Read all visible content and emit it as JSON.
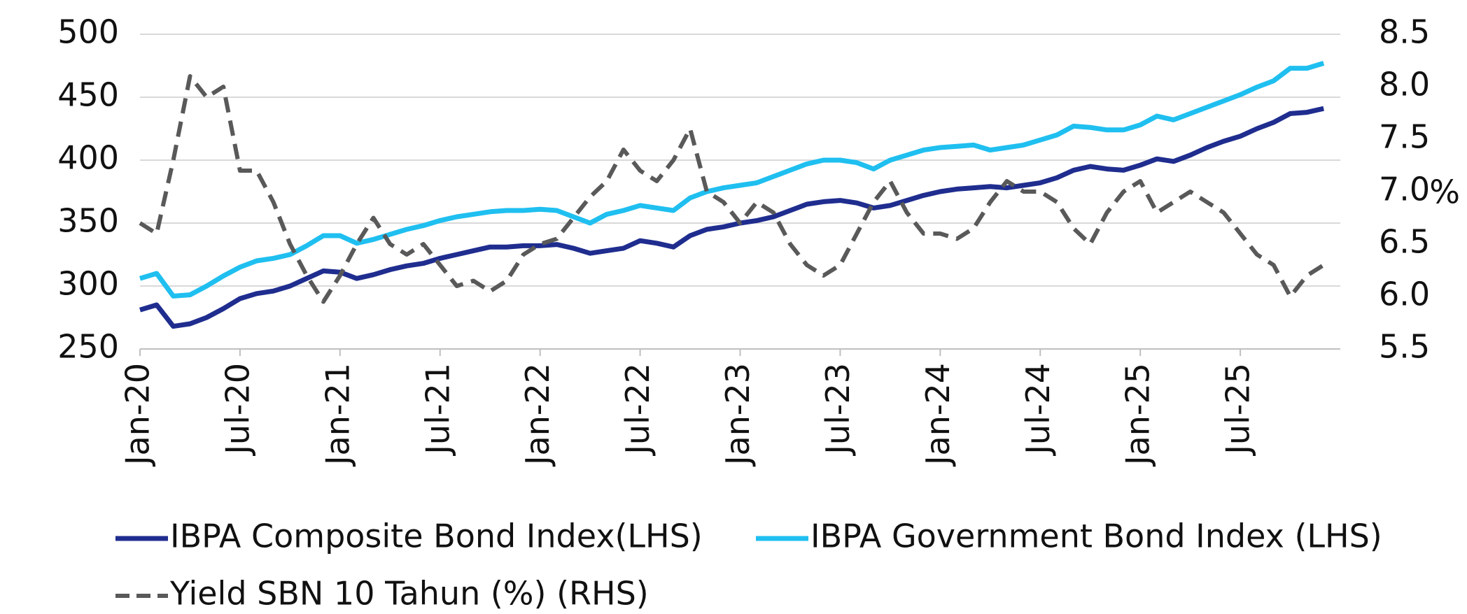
{
  "chart_data": {
    "type": "line",
    "x": [
      "2020-01",
      "2020-02",
      "2020-03",
      "2020-04",
      "2020-05",
      "2020-06",
      "2020-07",
      "2020-08",
      "2020-09",
      "2020-10",
      "2020-11",
      "2020-12",
      "2021-01",
      "2021-02",
      "2021-03",
      "2021-04",
      "2021-05",
      "2021-06",
      "2021-07",
      "2021-08",
      "2021-09",
      "2021-10",
      "2021-11",
      "2021-12",
      "2022-01",
      "2022-02",
      "2022-03",
      "2022-04",
      "2022-05",
      "2022-06",
      "2022-07",
      "2022-08",
      "2022-09",
      "2022-10",
      "2022-11",
      "2022-12",
      "2023-01",
      "2023-02",
      "2023-03",
      "2023-04",
      "2023-05",
      "2023-06",
      "2023-07",
      "2023-08",
      "2023-09",
      "2023-10",
      "2023-11",
      "2023-12",
      "2024-01",
      "2024-02",
      "2024-03",
      "2024-04",
      "2024-05",
      "2024-06",
      "2024-07",
      "2024-08",
      "2024-09",
      "2024-10",
      "2024-11",
      "2024-12",
      "2025-01",
      "2025-02",
      "2025-03",
      "2025-04",
      "2025-05",
      "2025-06",
      "2025-07",
      "2025-08",
      "2025-09",
      "2025-10",
      "2025-11",
      "2025-12"
    ],
    "xlim": [
      "2020-01",
      "2026-01"
    ],
    "xticks": [
      {
        "value": "2020-01",
        "label": "Jan-20"
      },
      {
        "value": "2020-07",
        "label": "Jul-20"
      },
      {
        "value": "2021-01",
        "label": "Jan-21"
      },
      {
        "value": "2021-07",
        "label": "Jul-21"
      },
      {
        "value": "2022-01",
        "label": "Jan-22"
      },
      {
        "value": "2022-07",
        "label": "Jul-22"
      },
      {
        "value": "2023-01",
        "label": "Jan-23"
      },
      {
        "value": "2023-07",
        "label": "Jul-23"
      },
      {
        "value": "2024-01",
        "label": "Jan-24"
      },
      {
        "value": "2024-07",
        "label": "Jul-24"
      },
      {
        "value": "2025-01",
        "label": "Jan-25"
      },
      {
        "value": "2025-07",
        "label": "Jul-25"
      }
    ],
    "ylim": [
      250,
      500
    ],
    "yticks": [
      250,
      300,
      350,
      400,
      450,
      500
    ],
    "y2lim": [
      5.5,
      8.5
    ],
    "y2ticks": [
      5.5,
      {
        "value": 6,
        "label": "6.0"
      },
      6.5,
      {
        "value": 7,
        "label": "7.0"
      },
      7.5,
      {
        "value": 8,
        "label": "8.0"
      },
      8.5
    ],
    "y2label": "%",
    "grid": true,
    "series": [
      {
        "name": "IBPA Composite Bond Index(LHS)",
        "color": "#1f2d8f",
        "dash": false,
        "values": [
          281,
          285,
          268,
          270,
          275,
          282,
          290,
          294,
          296,
          300,
          306,
          312,
          311,
          306,
          309,
          313,
          316,
          318,
          322,
          325,
          328,
          331,
          331,
          332,
          332,
          333,
          330,
          326,
          328,
          330,
          336,
          334,
          331,
          340,
          345,
          347,
          350,
          352,
          355,
          360,
          365,
          367,
          368,
          366,
          362,
          364,
          368,
          372,
          375,
          377,
          378,
          379,
          378,
          380,
          382,
          386,
          392,
          395,
          393,
          392,
          396,
          401,
          399,
          404,
          410,
          415,
          419,
          425,
          430,
          437,
          438,
          441
        ]
      },
      {
        "name": "IBPA Government Bond Index (LHS)",
        "color": "#1fbff0",
        "dash": false,
        "values": [
          306,
          310,
          292,
          293,
          300,
          308,
          315,
          320,
          322,
          325,
          332,
          340,
          340,
          334,
          337,
          341,
          345,
          348,
          352,
          355,
          357,
          359,
          360,
          360,
          361,
          360,
          355,
          350,
          357,
          360,
          364,
          362,
          360,
          370,
          375,
          378,
          380,
          382,
          387,
          392,
          397,
          400,
          400,
          398,
          393,
          400,
          404,
          408,
          410,
          411,
          412,
          408,
          410,
          412,
          416,
          420,
          427,
          426,
          424,
          424,
          428,
          435,
          432,
          437,
          442,
          447,
          452,
          458,
          463,
          473,
          473,
          477
        ]
      },
      {
        "name": "Yield SBN 10 Tahun (%) (RHS)",
        "color": "#595959",
        "dash": true,
        "axis": "y2",
        "values": [
          6.7,
          6.6,
          7.3,
          8.1,
          7.9,
          8.0,
          7.2,
          7.2,
          6.9,
          6.5,
          6.2,
          5.95,
          6.2,
          6.5,
          6.75,
          6.5,
          6.4,
          6.5,
          6.3,
          6.1,
          6.15,
          6.05,
          6.15,
          6.4,
          6.5,
          6.55,
          6.75,
          6.95,
          7.1,
          7.4,
          7.2,
          7.1,
          7.3,
          7.6,
          7.0,
          6.9,
          6.7,
          6.9,
          6.8,
          6.5,
          6.3,
          6.2,
          6.3,
          6.6,
          6.9,
          7.1,
          6.8,
          6.6,
          6.6,
          6.55,
          6.65,
          6.9,
          7.1,
          7.0,
          7.0,
          6.9,
          6.65,
          6.5,
          6.8,
          7.0,
          7.1,
          6.8,
          6.9,
          7.0,
          6.9,
          6.8,
          6.6,
          6.4,
          6.3,
          6.0,
          6.2,
          6.3
        ]
      }
    ]
  }
}
